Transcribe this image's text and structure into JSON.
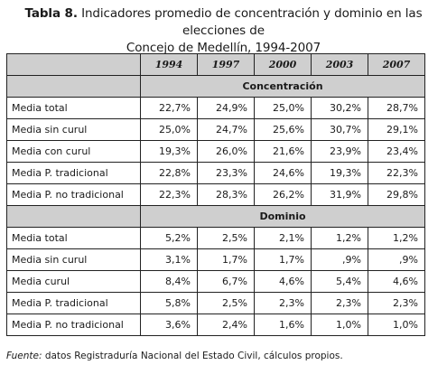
{
  "caption": {
    "prefix": "Tabla 8.",
    "line1": " Indicadores promedio de concentración y dominio en las elecciones de",
    "line2": "Concejo de Medellín, 1994-2007"
  },
  "years": [
    "1994",
    "1997",
    "2000",
    "2003",
    "2007"
  ],
  "sections": [
    {
      "title": "Concentración",
      "rows": [
        {
          "label": "Media total",
          "values": [
            "22,7%",
            "24,9%",
            "25,0%",
            "30,2%",
            "28,7%"
          ]
        },
        {
          "label": "Media sin curul",
          "values": [
            "25,0%",
            "24,7%",
            "25,6%",
            "30,7%",
            "29,1%"
          ]
        },
        {
          "label": "Media con curul",
          "values": [
            "19,3%",
            "26,0%",
            "21,6%",
            "23,9%",
            "23,4%"
          ]
        },
        {
          "label": "Media P. tradicional",
          "values": [
            "22,8%",
            "23,3%",
            "24,6%",
            "19,3%",
            "22,3%"
          ]
        },
        {
          "label": "Media P. no tradicional",
          "values": [
            "22,3%",
            "28,3%",
            "26,2%",
            "31,9%",
            "29,8%"
          ]
        }
      ]
    },
    {
      "title": "Dominio",
      "rows": [
        {
          "label": "Media total",
          "values": [
            "5,2%",
            "2,5%",
            "2,1%",
            "1,2%",
            "1,2%"
          ]
        },
        {
          "label": "Media sin curul",
          "values": [
            "3,1%",
            "1,7%",
            "1,7%",
            ",9%",
            ",9%"
          ]
        },
        {
          "label": "Media curul",
          "values": [
            "8,4%",
            "6,7%",
            "4,6%",
            "5,4%",
            "4,6%"
          ]
        },
        {
          "label": "Media P. tradicional",
          "values": [
            "5,8%",
            "2,5%",
            "2,3%",
            "2,3%",
            "2,3%"
          ]
        },
        {
          "label": "Media P. no tradicional",
          "values": [
            "3,6%",
            "2,4%",
            "1,6%",
            "1,0%",
            "1,0%"
          ]
        }
      ]
    }
  ],
  "source": {
    "label": "Fuente:",
    "text": " datos Registraduría Nacional del Estado Civil, cálculos propios."
  }
}
